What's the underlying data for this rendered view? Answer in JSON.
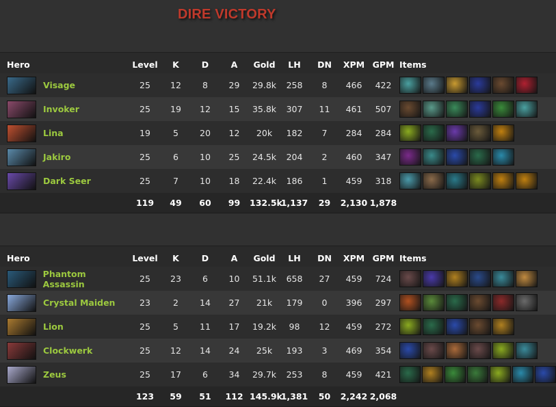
{
  "title": "DIRE VICTORY",
  "headers": {
    "hero": "Hero",
    "level": "Level",
    "k": "K",
    "d": "D",
    "a": "A",
    "gold": "Gold",
    "lh": "LH",
    "dn": "DN",
    "xpm": "XPM",
    "gpm": "GPM",
    "items": "Items"
  },
  "teams": [
    {
      "players": [
        {
          "hero": "Visage",
          "portrait": "#3a6a8a",
          "level": "25",
          "k": "12",
          "d": "8",
          "a": "29",
          "gold": "29.8k",
          "lh": "258",
          "dn": "8",
          "xpm": "466",
          "gpm": "422",
          "items": [
            "#4aa0a0",
            "#5a7a8a",
            "#c89a30",
            "#2a3a9a",
            "#6a4a30",
            "#b02030"
          ]
        },
        {
          "hero": "Invoker",
          "portrait": "#8a4a6a",
          "level": "25",
          "k": "19",
          "d": "12",
          "a": "15",
          "gold": "35.8k",
          "lh": "307",
          "dn": "11",
          "xpm": "461",
          "gpm": "507",
          "items": [
            "#6a4a30",
            "#5a9a8a",
            "#3a8a5a",
            "#2a3a9a",
            "#3a8a3a",
            "#4aa0a0"
          ]
        },
        {
          "hero": "Lina",
          "portrait": "#c05030",
          "level": "19",
          "k": "5",
          "d": "20",
          "a": "12",
          "gold": "20k",
          "lh": "182",
          "dn": "7",
          "xpm": "284",
          "gpm": "284",
          "items": [
            "#8aaa20",
            "#2a6a4a",
            "#6a3aaa",
            "#6a5a3a",
            "#c08010"
          ]
        },
        {
          "hero": "Jakiro",
          "portrait": "#5a8aaa",
          "level": "25",
          "k": "6",
          "d": "10",
          "a": "25",
          "gold": "24.5k",
          "lh": "204",
          "dn": "2",
          "xpm": "460",
          "gpm": "347",
          "items": [
            "#7a2a8a",
            "#3a8a8a",
            "#2a4aaa",
            "#2a6a4a",
            "#2a8aaa"
          ]
        },
        {
          "hero": "Dark Seer",
          "portrait": "#6a4aaa",
          "level": "25",
          "k": "7",
          "d": "10",
          "a": "18",
          "gold": "22.4k",
          "lh": "186",
          "dn": "1",
          "xpm": "459",
          "gpm": "318",
          "items": [
            "#4a9aaa",
            "#8a6a4a",
            "#2a7a8a",
            "#7a8a20",
            "#c08010",
            "#c08010"
          ]
        }
      ],
      "totals": {
        "level": "119",
        "k": "49",
        "d": "60",
        "a": "99",
        "gold": "132.5k",
        "lh": "1,137",
        "dn": "29",
        "xpm": "2,130",
        "gpm": "1,878"
      }
    },
    {
      "players": [
        {
          "hero": "Phantom Assassin",
          "portrait": "#2a5a7a",
          "level": "25",
          "k": "23",
          "d": "6",
          "a": "10",
          "gold": "51.1k",
          "lh": "658",
          "dn": "27",
          "xpm": "459",
          "gpm": "724",
          "items": [
            "#6a4a4a",
            "#4a3aaa",
            "#b08020",
            "#2a4a8a",
            "#3a8a9a",
            "#c08a40"
          ]
        },
        {
          "hero": "Crystal Maiden",
          "portrait": "#8aaadd",
          "level": "23",
          "k": "2",
          "d": "14",
          "a": "27",
          "gold": "21k",
          "lh": "179",
          "dn": "0",
          "xpm": "396",
          "gpm": "297",
          "items": [
            "#b05020",
            "#5a8a3a",
            "#2a6a4a",
            "#6a4a30",
            "#8a2a2a",
            "#6a6a6a"
          ]
        },
        {
          "hero": "Lion",
          "portrait": "#aa7a30",
          "level": "25",
          "k": "5",
          "d": "11",
          "a": "17",
          "gold": "19.2k",
          "lh": "98",
          "dn": "12",
          "xpm": "459",
          "gpm": "272",
          "items": [
            "#8aaa20",
            "#2a6a4a",
            "#2a4aaa",
            "#6a4a30",
            "#b08020"
          ]
        },
        {
          "hero": "Clockwerk",
          "portrait": "#8a3a3a",
          "level": "25",
          "k": "12",
          "d": "14",
          "a": "24",
          "gold": "25k",
          "lh": "193",
          "dn": "3",
          "xpm": "469",
          "gpm": "354",
          "items": [
            "#2a4aaa",
            "#6a4a4a",
            "#aa6a3a",
            "#6a4a4a",
            "#8aaa20",
            "#3a8a9a"
          ]
        },
        {
          "hero": "Zeus",
          "portrait": "#aaaacc",
          "level": "25",
          "k": "17",
          "d": "6",
          "a": "34",
          "gold": "29.7k",
          "lh": "253",
          "dn": "8",
          "xpm": "459",
          "gpm": "421",
          "items": [
            "#2a6a4a",
            "#b08020",
            "#3a8a3a",
            "#3a7a3a",
            "#8aaa20",
            "#2a8aaa",
            "#2a4aaa"
          ]
        }
      ],
      "totals": {
        "level": "123",
        "k": "59",
        "d": "51",
        "a": "112",
        "gold": "145.9k",
        "lh": "1,381",
        "dn": "50",
        "xpm": "2,242",
        "gpm": "2,068"
      }
    }
  ]
}
